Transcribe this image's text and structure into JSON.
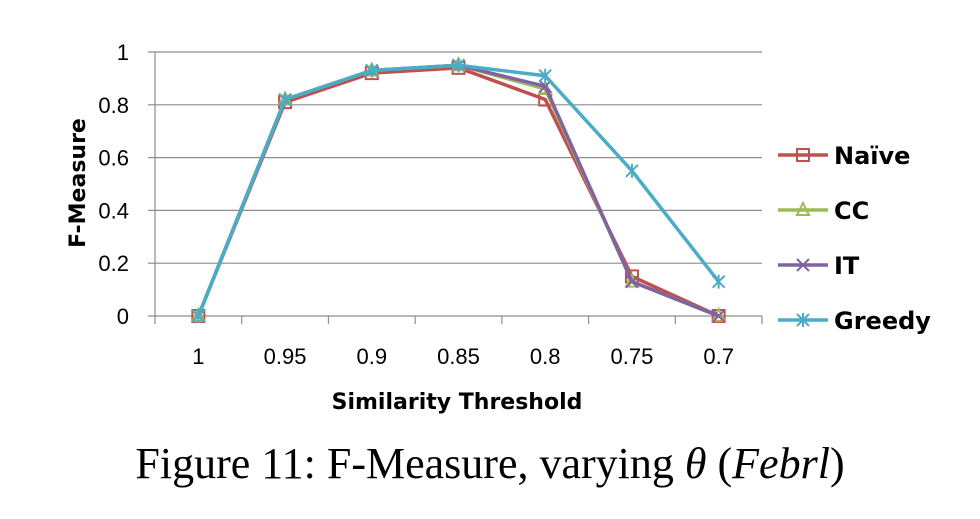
{
  "chart_data": {
    "type": "line",
    "title": "",
    "xlabel": "Similarity Threshold",
    "ylabel": "F-Measure",
    "categories": [
      "1",
      "0.95",
      "0.9",
      "0.85",
      "0.8",
      "0.75",
      "0.7"
    ],
    "yticks": [
      "0",
      "0.2",
      "0.4",
      "0.6",
      "0.8",
      "1"
    ],
    "ylim": [
      0,
      1
    ],
    "grid": true,
    "legend_position": "right",
    "series": [
      {
        "name": "Naïve",
        "color": "#c0504d",
        "marker": "square",
        "values": [
          0,
          0.81,
          0.92,
          0.94,
          0.82,
          0.15,
          0
        ]
      },
      {
        "name": "CC",
        "color": "#9bbb59",
        "marker": "triangle",
        "values": [
          0,
          0.82,
          0.93,
          0.95,
          0.86,
          0.13,
          0
        ]
      },
      {
        "name": "IT",
        "color": "#8064a2",
        "marker": "x",
        "values": [
          0,
          0.82,
          0.93,
          0.95,
          0.87,
          0.13,
          0
        ]
      },
      {
        "name": "Greedy",
        "color": "#4bacc6",
        "marker": "asterisk",
        "values": [
          0,
          0.82,
          0.93,
          0.95,
          0.91,
          0.55,
          0.13
        ]
      }
    ]
  },
  "caption": {
    "prefix": "Figure 11: F-Measure, varying ",
    "theta": "θ",
    "paren_open": " (",
    "dataset": "Febrl",
    "paren_close": ")"
  }
}
